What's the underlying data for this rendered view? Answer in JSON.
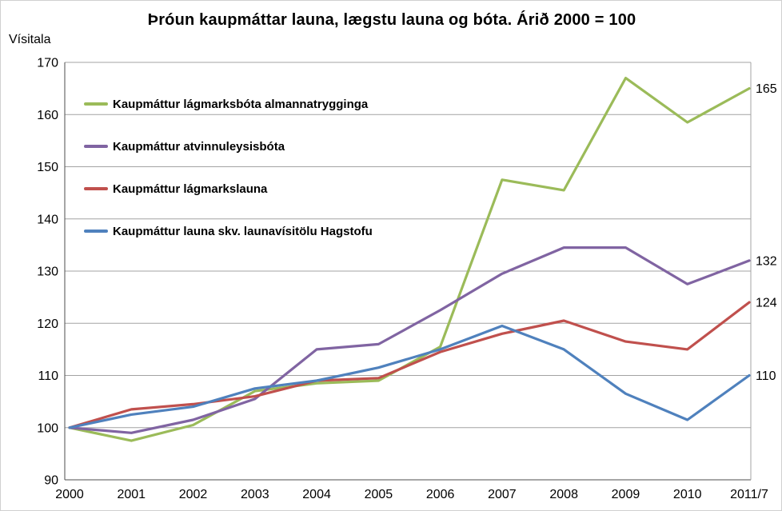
{
  "chart_data": {
    "type": "line",
    "title": "Þróun kaupmáttar launa, lægstu launa og bóta. Árið 2000 = 100",
    "ylabel": "Vísitala",
    "xlabel": "",
    "ylim": [
      90,
      170
    ],
    "ytick_step": 10,
    "grid": true,
    "legend_position": "inside-top-left",
    "categories": [
      "2000",
      "2001",
      "2002",
      "2003",
      "2004",
      "2005",
      "2006",
      "2007",
      "2008",
      "2009",
      "2010",
      "2011/7"
    ],
    "series": [
      {
        "name": "Kaupmáttur lágmarksbóta almannatrygginga",
        "color": "#9BBB59",
        "end_label": "165",
        "values": [
          100,
          97.5,
          100.5,
          107,
          108.5,
          109,
          115.5,
          147.5,
          145.5,
          167,
          158.5,
          165
        ]
      },
      {
        "name": "Kaupmáttur atvinnuleysisbóta",
        "color": "#8064A2",
        "end_label": "132",
        "values": [
          100,
          99,
          101.5,
          105.5,
          115,
          116,
          122.5,
          129.5,
          134.5,
          134.5,
          127.5,
          132
        ]
      },
      {
        "name": "Kaupmáttur lágmarkslauna",
        "color": "#C0504D",
        "end_label": "124",
        "values": [
          100,
          103.5,
          104.5,
          106,
          109,
          109.5,
          114.5,
          118,
          120.5,
          116.5,
          115,
          124
        ]
      },
      {
        "name": "Kaupmáttur launa skv. launavísitölu Hagstofu",
        "color": "#4F81BD",
        "end_label": "110",
        "values": [
          100,
          102.5,
          104,
          107.5,
          109,
          111.5,
          115,
          119.5,
          115,
          106.5,
          101.5,
          110
        ]
      }
    ],
    "colors": {
      "gridline": "#A3A3A3",
      "axis": "#4D4D4D",
      "text": "#000000"
    }
  }
}
